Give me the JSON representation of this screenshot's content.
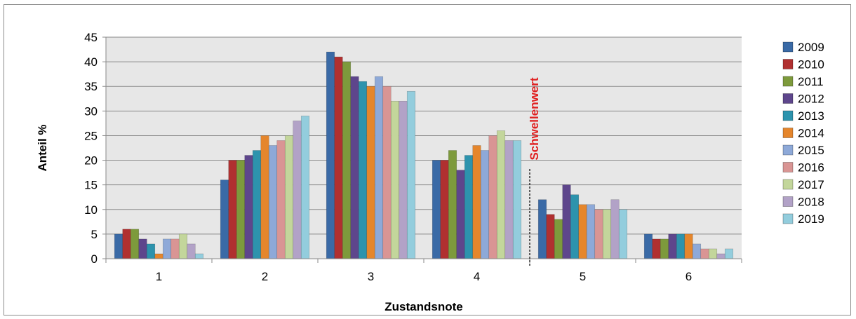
{
  "chart_data": {
    "type": "bar",
    "title": "",
    "xlabel": "Zustandsnote",
    "ylabel": "Anteil %",
    "categories": [
      "1",
      "2",
      "3",
      "4",
      "5",
      "6"
    ],
    "ylim": [
      0,
      45
    ],
    "yticks": [
      0,
      5,
      10,
      15,
      20,
      25,
      30,
      35,
      40,
      45
    ],
    "grid": true,
    "legend_position": "right",
    "threshold": {
      "label": "Schwellenwert",
      "between": [
        "4",
        "5"
      ],
      "color": "#e02020"
    },
    "series": [
      {
        "name": "2009",
        "color": "#3a6aa6",
        "values": [
          5,
          16,
          42,
          20,
          12,
          5
        ]
      },
      {
        "name": "2010",
        "color": "#b03030",
        "values": [
          6,
          20,
          41,
          20,
          9,
          4
        ]
      },
      {
        "name": "2011",
        "color": "#7d9a3c",
        "values": [
          6,
          20,
          40,
          22,
          8,
          4
        ]
      },
      {
        "name": "2012",
        "color": "#5e468c",
        "values": [
          4,
          21,
          37,
          18,
          15,
          5
        ]
      },
      {
        "name": "2013",
        "color": "#2d93ad",
        "values": [
          3,
          22,
          36,
          21,
          13,
          5
        ]
      },
      {
        "name": "2014",
        "color": "#e5862c",
        "values": [
          1,
          25,
          35,
          23,
          11,
          5
        ]
      },
      {
        "name": "2015",
        "color": "#8ea9d8",
        "values": [
          4,
          23,
          37,
          22,
          11,
          3
        ]
      },
      {
        "name": "2016",
        "color": "#d99594",
        "values": [
          4,
          24,
          35,
          25,
          10,
          2
        ]
      },
      {
        "name": "2017",
        "color": "#c3d69b",
        "values": [
          5,
          25,
          32,
          26,
          10,
          2
        ]
      },
      {
        "name": "2018",
        "color": "#b2a2c7",
        "values": [
          3,
          28,
          32,
          24,
          12,
          1
        ]
      },
      {
        "name": "2019",
        "color": "#93cddd",
        "values": [
          1,
          29,
          34,
          24,
          10,
          2
        ]
      }
    ]
  }
}
